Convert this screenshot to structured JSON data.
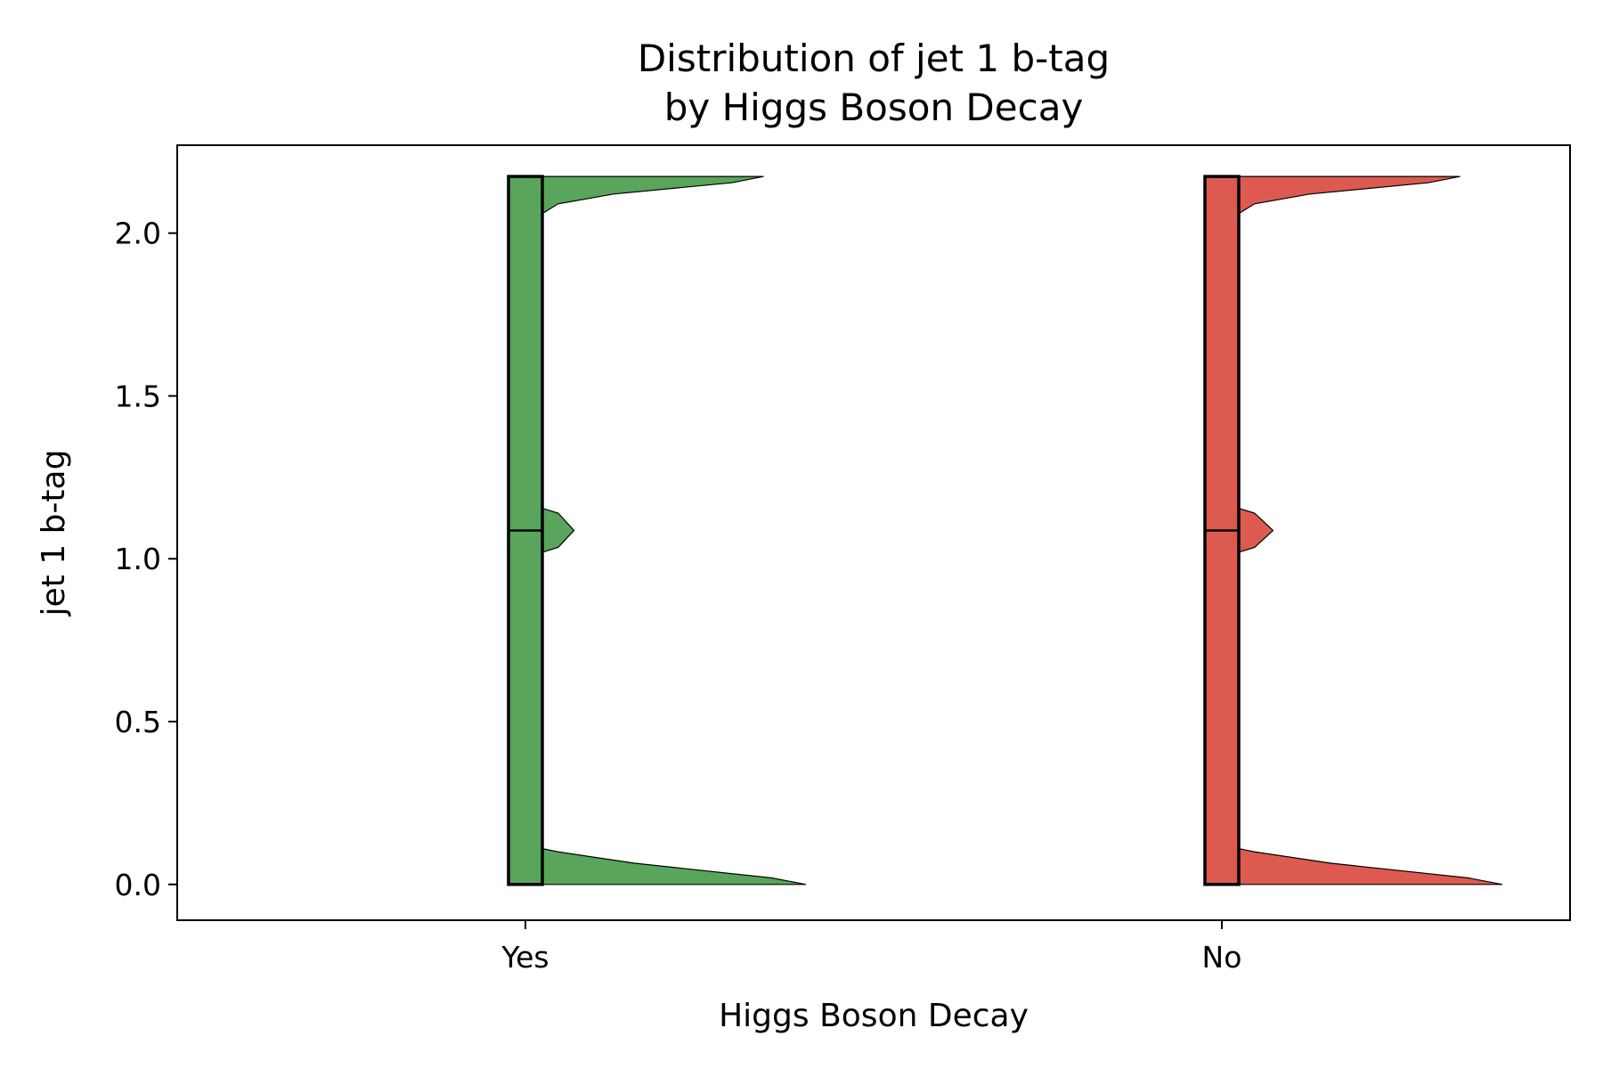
{
  "chart_data": {
    "type": "violin",
    "title_line1": "Distribution of jet 1 b-tag",
    "title_line2": "by Higgs Boson Decay",
    "xlabel": "Higgs Boson Decay",
    "ylabel": "jet 1 b-tag",
    "categories": [
      "Yes",
      "No"
    ],
    "colors": [
      "#59a55b",
      "#dd5a50"
    ],
    "ylim": [
      -0.11,
      2.27
    ],
    "yticks": [
      0.0,
      0.5,
      1.0,
      1.5,
      2.0
    ],
    "ytick_labels": [
      "0.0",
      "0.5",
      "1.0",
      "1.5",
      "2.0"
    ],
    "grid": false,
    "series": [
      {
        "category": "Yes",
        "min": 0.0,
        "q1": 0.0,
        "median": 1.087,
        "q3": 2.174,
        "max": 2.174,
        "density_profile": [
          [
            0.0,
            1.0
          ],
          [
            0.02,
            0.87
          ],
          [
            0.065,
            0.35
          ],
          [
            0.1,
            0.06
          ],
          [
            0.11,
            0.0
          ],
          [
            1.02,
            0.0
          ],
          [
            1.035,
            0.06
          ],
          [
            1.087,
            0.12
          ],
          [
            1.14,
            0.06
          ],
          [
            1.155,
            0.0
          ],
          [
            2.06,
            0.0
          ],
          [
            2.09,
            0.06
          ],
          [
            2.12,
            0.27
          ],
          [
            2.155,
            0.72
          ],
          [
            2.174,
            0.84
          ]
        ]
      },
      {
        "category": "No",
        "min": 0.0,
        "q1": 0.0,
        "median": 1.087,
        "q3": 2.174,
        "max": 2.174,
        "density_profile": [
          [
            0.0,
            1.0
          ],
          [
            0.02,
            0.87
          ],
          [
            0.065,
            0.35
          ],
          [
            0.1,
            0.06
          ],
          [
            0.11,
            0.0
          ],
          [
            1.02,
            0.0
          ],
          [
            1.035,
            0.06
          ],
          [
            1.087,
            0.13
          ],
          [
            1.14,
            0.06
          ],
          [
            1.155,
            0.0
          ],
          [
            2.06,
            0.0
          ],
          [
            2.09,
            0.06
          ],
          [
            2.12,
            0.27
          ],
          [
            2.155,
            0.72
          ],
          [
            2.174,
            0.84
          ]
        ]
      }
    ]
  }
}
